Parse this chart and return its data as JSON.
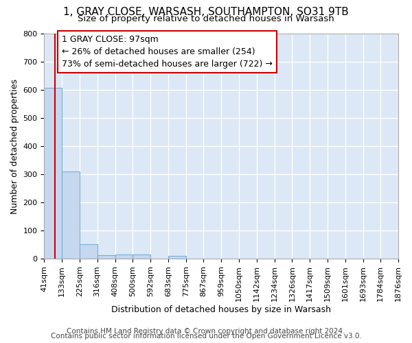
{
  "title_line1": "1, GRAY CLOSE, WARSASH, SOUTHAMPTON, SO31 9TB",
  "title_line2": "Size of property relative to detached houses in Warsash",
  "xlabel": "Distribution of detached houses by size in Warsash",
  "ylabel": "Number of detached properties",
  "bin_edges": [
    41,
    133,
    225,
    316,
    408,
    500,
    592,
    683,
    775,
    867,
    959,
    1050,
    1142,
    1234,
    1326,
    1417,
    1509,
    1601,
    1693,
    1784,
    1876
  ],
  "bar_heights": [
    607,
    310,
    52,
    13,
    14,
    14,
    0,
    10,
    0,
    0,
    0,
    0,
    0,
    0,
    0,
    0,
    0,
    0,
    0,
    0
  ],
  "bar_color": "#c5d8f0",
  "bar_edge_color": "#7aadd4",
  "property_line_x": 97,
  "property_line_color": "#cc0000",
  "annotation_text": "1 GRAY CLOSE: 97sqm\n← 26% of detached houses are smaller (254)\n73% of semi-detached houses are larger (722) →",
  "annotation_box_color": "#ffffff",
  "annotation_box_edge_color": "#cc0000",
  "ylim": [
    0,
    800
  ],
  "yticks": [
    0,
    100,
    200,
    300,
    400,
    500,
    600,
    700,
    800
  ],
  "footer_line1": "Contains HM Land Registry data © Crown copyright and database right 2024.",
  "footer_line2": "Contains public sector information licensed under the Open Government Licence v3.0.",
  "bg_color": "#ffffff",
  "plot_bg_color": "#dce8f5",
  "grid_color": "#ffffff",
  "title_fontsize": 11,
  "subtitle_fontsize": 9.5,
  "axis_label_fontsize": 9,
  "tick_fontsize": 8,
  "annotation_fontsize": 9,
  "footer_fontsize": 7.5
}
